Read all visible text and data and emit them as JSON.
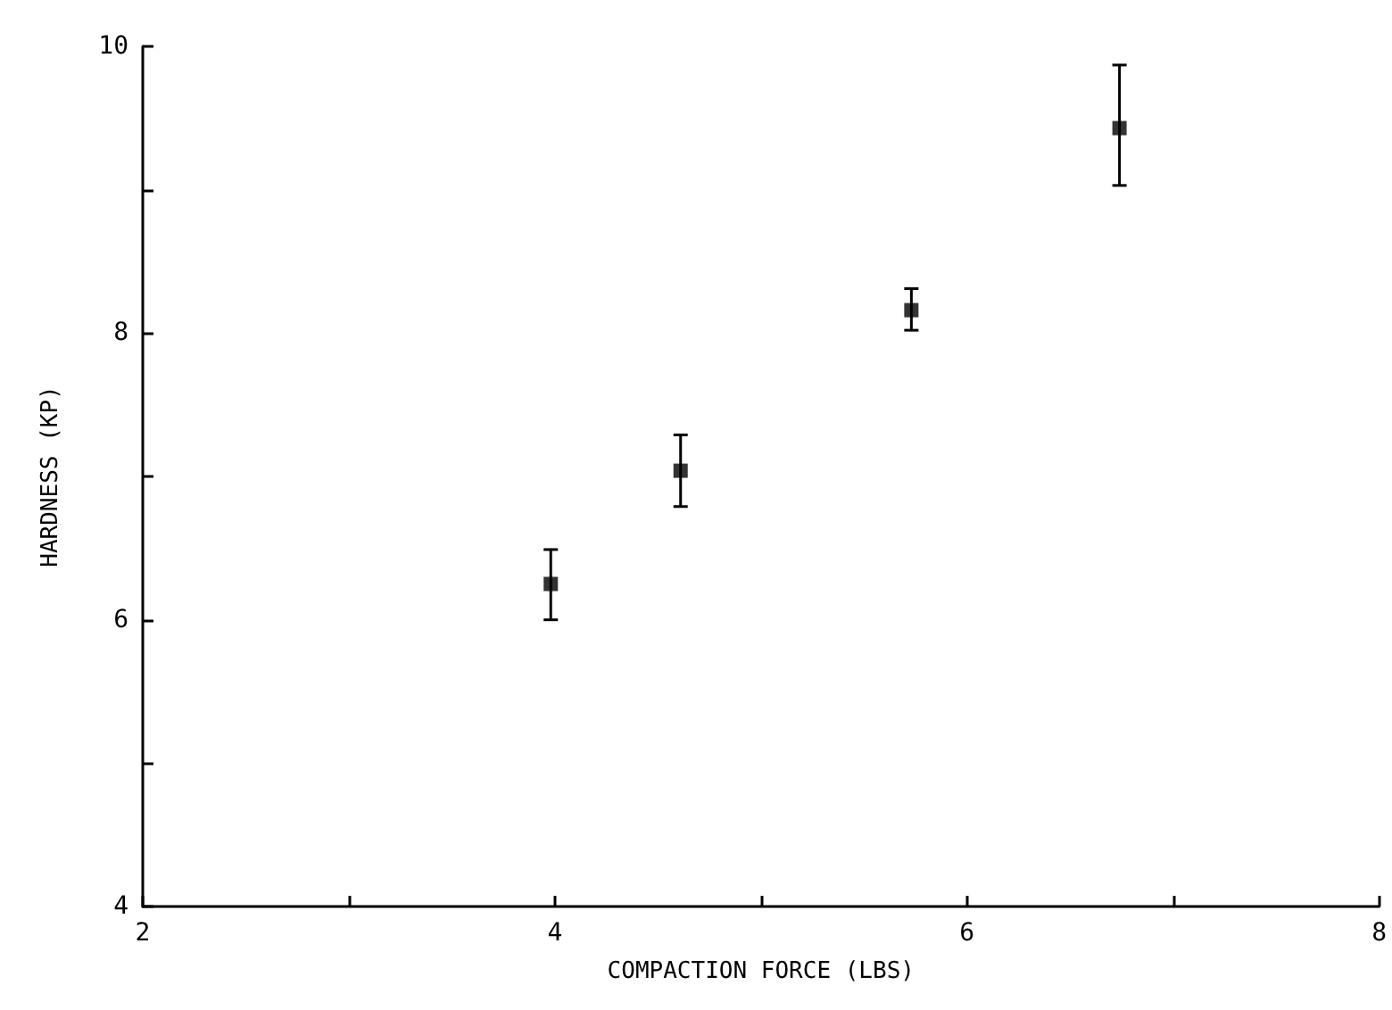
{
  "chart_data": {
    "type": "scatter",
    "xlabel": "COMPACTION FORCE (LBS)",
    "ylabel": "HARDNESS (KP)",
    "x": [
      3.98,
      4.61,
      5.73,
      6.74
    ],
    "values": [
      6.25,
      7.04,
      8.16,
      9.43
    ],
    "errors": [
      [
        6.0,
        6.49
      ],
      [
        6.79,
        7.29
      ],
      [
        8.02,
        8.31
      ],
      [
        9.03,
        9.87
      ]
    ],
    "color": "#000000",
    "marker": "square",
    "xlim": [
      2,
      8
    ],
    "ylim": [
      4,
      10
    ],
    "xticks": [
      2,
      {
        "value": 3,
        "label": null
      },
      4,
      {
        "value": 5,
        "label": null
      },
      6,
      {
        "value": 7,
        "label": null
      },
      8
    ],
    "yticks": [
      4,
      {
        "value": 5,
        "label": null
      },
      6,
      {
        "value": 7,
        "label": null
      },
      8,
      {
        "value": 9,
        "label": null
      },
      10
    ]
  }
}
